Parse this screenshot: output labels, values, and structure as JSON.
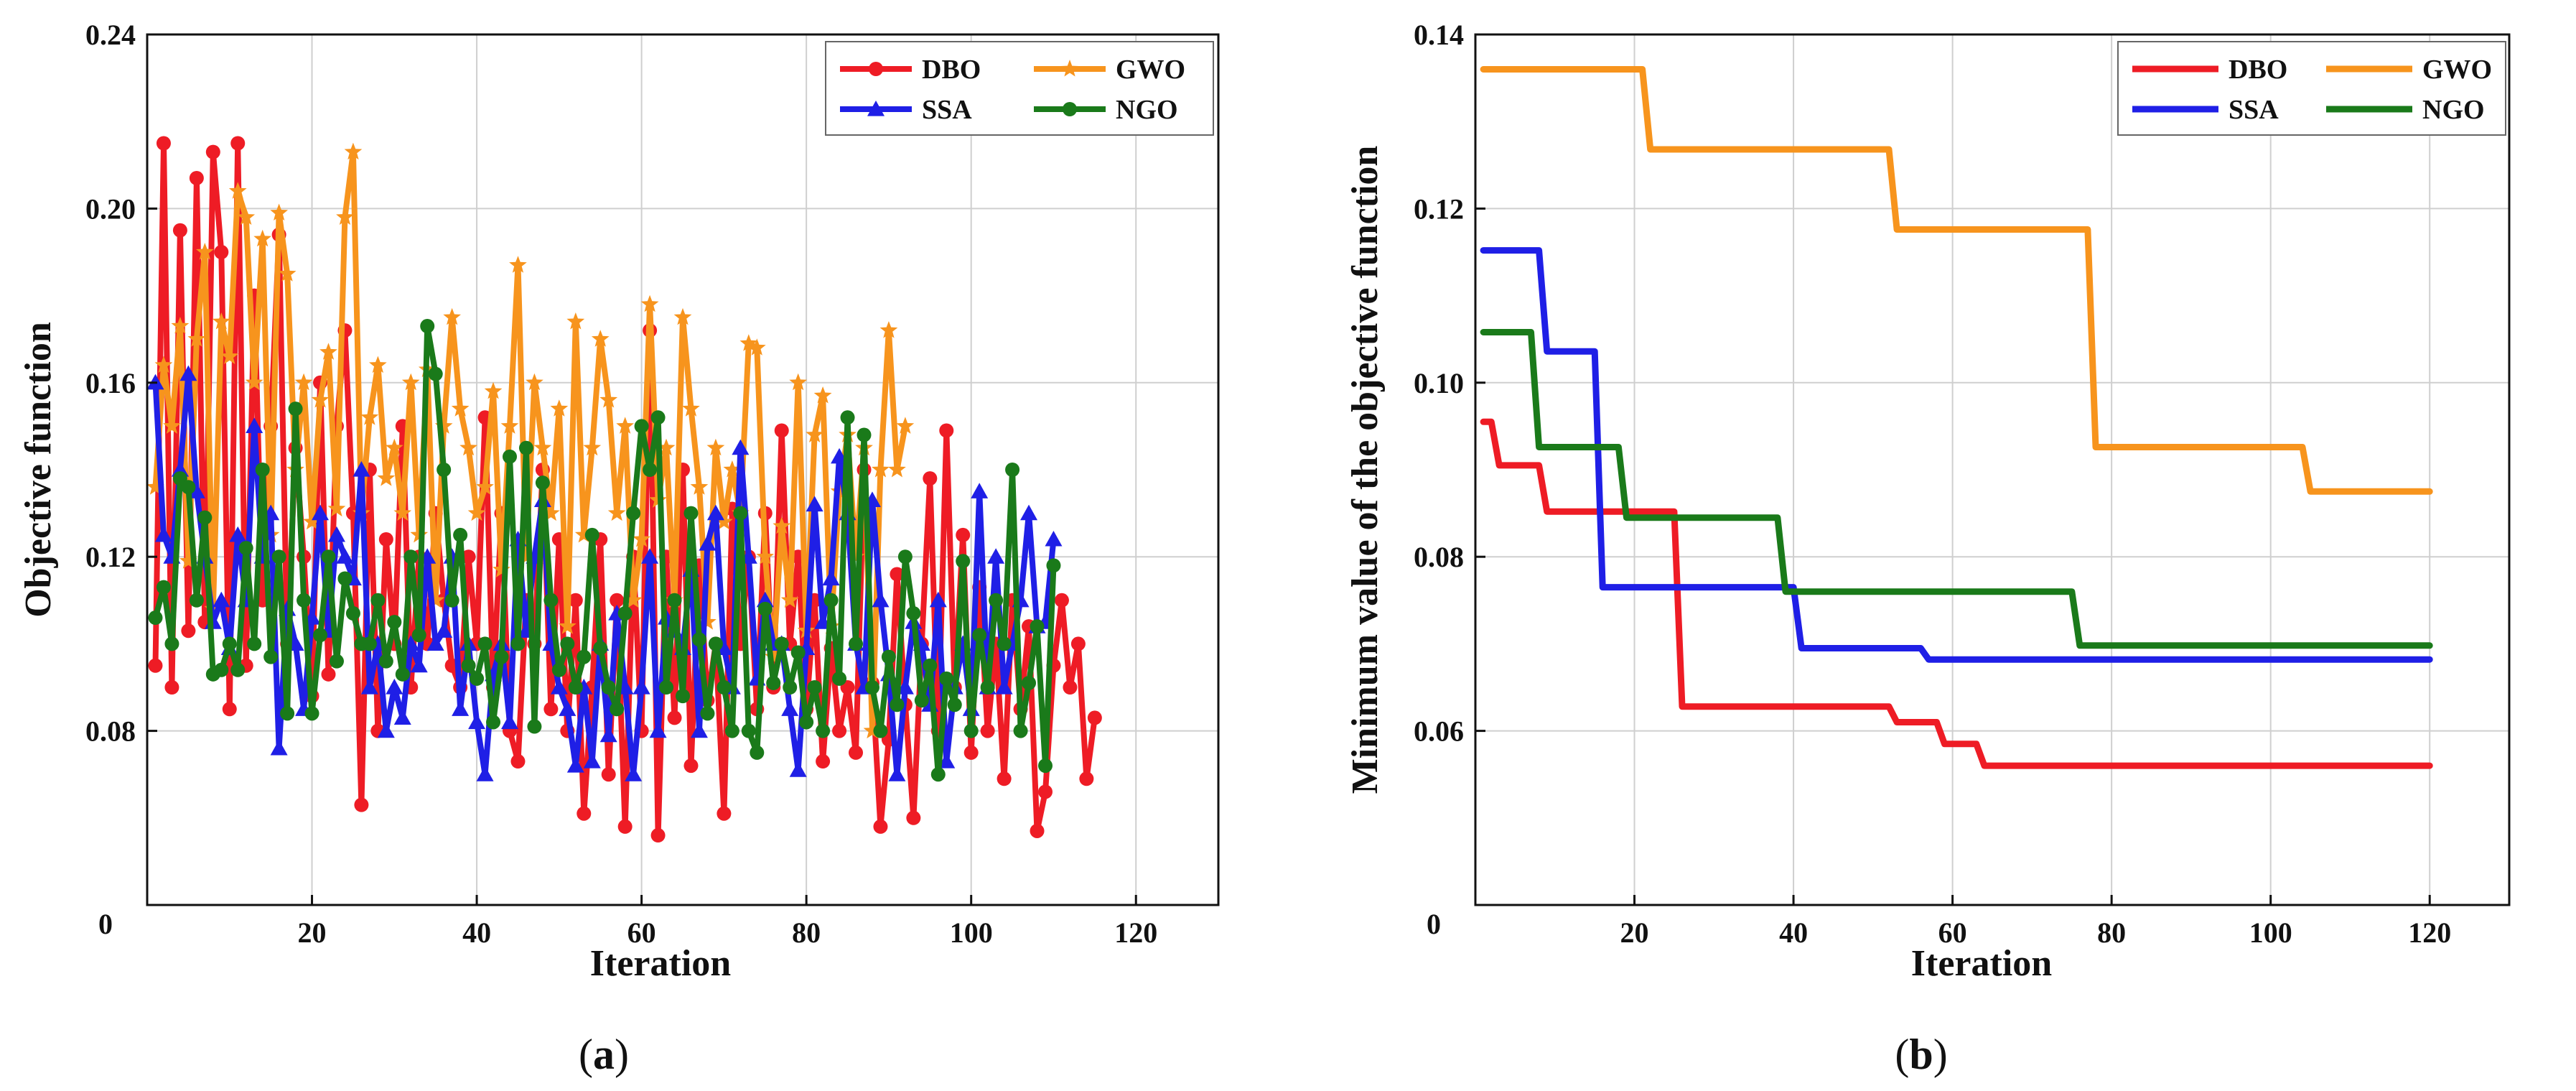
{
  "chart_data": [
    {
      "type": "line",
      "panel_label": "a",
      "panel_label_open": "(",
      "panel_label_close": ")",
      "xlabel": "Iteration",
      "ylabel": "Objective function",
      "xlim": [
        0,
        130
      ],
      "ylim": [
        0.04,
        0.24
      ],
      "x_ticks": [
        0,
        20,
        40,
        60,
        80,
        100,
        120
      ],
      "y_ticks": [
        0.08,
        0.12,
        0.16,
        0.2,
        0.24
      ],
      "y_tick_labels": [
        "0.08",
        "0.12",
        "0.16",
        "0.20",
        "0.24"
      ],
      "x_origin_label": "0",
      "grid": true,
      "legend_position": "top-right",
      "series": [
        {
          "name": "DBO",
          "color": "#ee1c25",
          "marker": "circle",
          "values": [
            0.095,
            0.215,
            0.09,
            0.195,
            0.103,
            0.207,
            0.105,
            0.213,
            0.19,
            0.085,
            0.215,
            0.095,
            0.18,
            0.11,
            0.15,
            0.194,
            0.1,
            0.145,
            0.12,
            0.088,
            0.16,
            0.093,
            0.15,
            0.172,
            0.13,
            0.063,
            0.14,
            0.08,
            0.124,
            0.1,
            0.15,
            0.09,
            0.12,
            0.1,
            0.13,
            0.11,
            0.095,
            0.09,
            0.12,
            0.1,
            0.152,
            0.09,
            0.13,
            0.08,
            0.073,
            0.11,
            0.1,
            0.14,
            0.085,
            0.124,
            0.08,
            0.11,
            0.061,
            0.09,
            0.124,
            0.07,
            0.11,
            0.058,
            0.12,
            0.08,
            0.172,
            0.056,
            0.12,
            0.083,
            0.14,
            0.072,
            0.118,
            0.087,
            0.1,
            0.061,
            0.131,
            0.1,
            0.12,
            0.085,
            0.13,
            0.09,
            0.149,
            0.1,
            0.12,
            0.085,
            0.11,
            0.073,
            0.099,
            0.08,
            0.09,
            0.075,
            0.14,
            0.091,
            0.058,
            0.078,
            0.116,
            0.086,
            0.06,
            0.1,
            0.138,
            0.08,
            0.149,
            0.09,
            0.125,
            0.075,
            0.113,
            0.08,
            0.1,
            0.069,
            0.11,
            0.085,
            0.104,
            0.057,
            0.066,
            0.095,
            0.11,
            0.09,
            0.1,
            0.069,
            0.083
          ]
        },
        {
          "name": "GWO",
          "color": "#f7941d",
          "marker": "star",
          "values": [
            0.136,
            0.164,
            0.15,
            0.173,
            0.119,
            0.17,
            0.19,
            0.108,
            0.174,
            0.166,
            0.204,
            0.198,
            0.16,
            0.193,
            0.125,
            0.199,
            0.185,
            0.14,
            0.16,
            0.128,
            0.156,
            0.167,
            0.131,
            0.198,
            0.213,
            0.13,
            0.152,
            0.164,
            0.138,
            0.145,
            0.13,
            0.16,
            0.125,
            0.163,
            0.11,
            0.15,
            0.175,
            0.154,
            0.145,
            0.13,
            0.136,
            0.158,
            0.117,
            0.15,
            0.187,
            0.12,
            0.16,
            0.145,
            0.13,
            0.154,
            0.104,
            0.174,
            0.125,
            0.145,
            0.17,
            0.156,
            0.13,
            0.15,
            0.11,
            0.124,
            0.178,
            0.133,
            0.145,
            0.11,
            0.175,
            0.154,
            0.136,
            0.105,
            0.145,
            0.128,
            0.14,
            0.13,
            0.169,
            0.168,
            0.12,
            0.097,
            0.127,
            0.11,
            0.16,
            0.103,
            0.148,
            0.157,
            0.104,
            0.135,
            0.148,
            0.12,
            0.145,
            0.08,
            0.14,
            0.172,
            0.14,
            0.15
          ]
        },
        {
          "name": "SSA",
          "color": "#1f1fe6",
          "marker": "triangle",
          "values": [
            0.16,
            0.125,
            0.12,
            0.14,
            0.162,
            0.135,
            0.12,
            0.105,
            0.11,
            0.099,
            0.125,
            0.11,
            0.15,
            0.12,
            0.13,
            0.076,
            0.108,
            0.1,
            0.085,
            0.106,
            0.13,
            0.103,
            0.125,
            0.12,
            0.115,
            0.14,
            0.09,
            0.1,
            0.08,
            0.09,
            0.083,
            0.1,
            0.095,
            0.12,
            0.1,
            0.103,
            0.12,
            0.085,
            0.1,
            0.082,
            0.07,
            0.093,
            0.1,
            0.082,
            0.124,
            0.103,
            0.12,
            0.133,
            0.1,
            0.09,
            0.085,
            0.072,
            0.09,
            0.073,
            0.1,
            0.079,
            0.107,
            0.09,
            0.07,
            0.09,
            0.12,
            0.08,
            0.106,
            0.103,
            0.099,
            0.117,
            0.08,
            0.123,
            0.13,
            0.099,
            0.09,
            0.145,
            0.12,
            0.092,
            0.11,
            0.1,
            0.1,
            0.085,
            0.071,
            0.099,
            0.132,
            0.105,
            0.115,
            0.143,
            0.13,
            0.1,
            0.09,
            0.133,
            0.11,
            0.093,
            0.07,
            0.09,
            0.105,
            0.1,
            0.086,
            0.11,
            0.073,
            0.09,
            0.1,
            0.085,
            0.135,
            0.09,
            0.12,
            0.09,
            0.1,
            0.11,
            0.13,
            0.104,
            0.105,
            0.124
          ]
        },
        {
          "name": "NGO",
          "color": "#1a7a1a",
          "marker": "circle",
          "values": [
            0.106,
            0.113,
            0.1,
            0.138,
            0.136,
            0.11,
            0.129,
            0.093,
            0.094,
            0.1,
            0.094,
            0.122,
            0.1,
            0.14,
            0.097,
            0.12,
            0.084,
            0.154,
            0.11,
            0.084,
            0.102,
            0.12,
            0.096,
            0.115,
            0.107,
            0.1,
            0.1,
            0.11,
            0.096,
            0.105,
            0.093,
            0.12,
            0.102,
            0.173,
            0.162,
            0.14,
            0.11,
            0.125,
            0.095,
            0.092,
            0.1,
            0.082,
            0.097,
            0.143,
            0.1,
            0.145,
            0.081,
            0.137,
            0.11,
            0.094,
            0.1,
            0.09,
            0.097,
            0.125,
            0.099,
            0.09,
            0.085,
            0.107,
            0.13,
            0.15,
            0.14,
            0.152,
            0.09,
            0.11,
            0.088,
            0.13,
            0.101,
            0.084,
            0.1,
            0.09,
            0.08,
            0.13,
            0.08,
            0.075,
            0.108,
            0.091,
            0.1,
            0.09,
            0.098,
            0.082,
            0.09,
            0.08,
            0.11,
            0.092,
            0.152,
            0.1,
            0.148,
            0.09,
            0.08,
            0.097,
            0.086,
            0.12,
            0.107,
            0.087,
            0.095,
            0.07,
            0.092,
            0.086,
            0.119,
            0.08,
            0.102,
            0.09,
            0.11,
            0.1,
            0.14,
            0.08,
            0.091,
            0.104,
            0.072,
            0.118
          ]
        }
      ]
    },
    {
      "type": "line",
      "panel_label": "b",
      "panel_label_open": "(",
      "panel_label_close": ")",
      "xlabel": "Iteration",
      "ylabel": "Minimum value of the objective function",
      "xlim": [
        0,
        130
      ],
      "ylim": [
        0.04,
        0.14
      ],
      "x_ticks": [
        20,
        40,
        60,
        80,
        100,
        120
      ],
      "y_ticks": [
        0.06,
        0.08,
        0.1,
        0.12,
        0.14
      ],
      "y_tick_labels": [
        "0.06",
        "0.08",
        "0.10",
        "0.12",
        "0.14"
      ],
      "x_origin_label": "0",
      "grid": true,
      "legend_position": "top-right",
      "series": [
        {
          "name": "DBO",
          "color": "#ee1c25",
          "x": [
            1,
            2,
            3,
            8,
            9,
            25,
            26,
            52,
            53,
            58,
            59,
            63,
            64,
            120
          ],
          "values": [
            0.0955,
            0.0955,
            0.0905,
            0.0905,
            0.0852,
            0.0852,
            0.0628,
            0.0628,
            0.061,
            0.061,
            0.0585,
            0.0585,
            0.056,
            0.056
          ]
        },
        {
          "name": "GWO",
          "color": "#f7941d",
          "x": [
            1,
            21,
            22,
            52,
            53,
            77,
            78,
            104,
            105,
            120
          ],
          "values": [
            0.136,
            0.136,
            0.1268,
            0.1268,
            0.1176,
            0.1176,
            0.0926,
            0.0926,
            0.0875,
            0.0875
          ]
        },
        {
          "name": "SSA",
          "color": "#1f1fe6",
          "x": [
            1,
            8,
            9,
            15,
            16,
            40,
            41,
            56,
            57,
            120
          ],
          "values": [
            0.1152,
            0.1152,
            0.1036,
            0.1036,
            0.0765,
            0.0765,
            0.0695,
            0.0695,
            0.0682,
            0.0682
          ]
        },
        {
          "name": "NGO",
          "color": "#1a7a1a",
          "x": [
            1,
            7,
            8,
            18,
            19,
            38,
            39,
            75,
            76,
            120
          ],
          "values": [
            0.1058,
            0.1058,
            0.0926,
            0.0926,
            0.0845,
            0.0845,
            0.076,
            0.076,
            0.0698,
            0.0698
          ]
        }
      ]
    }
  ]
}
